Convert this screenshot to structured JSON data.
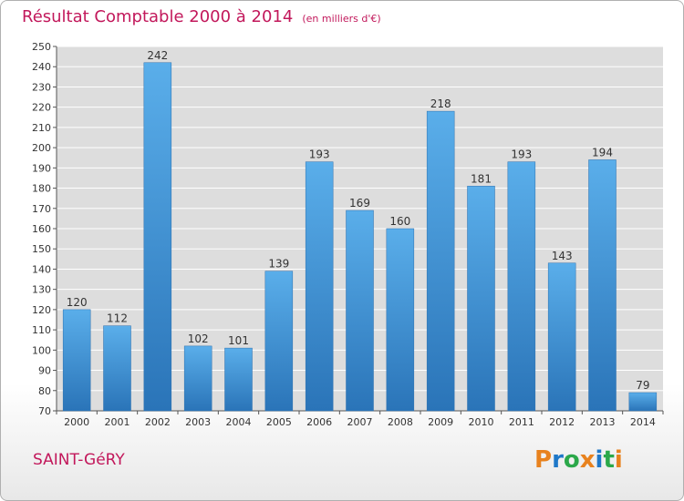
{
  "header": {
    "title": "Résultat Comptable 2000 à 2014",
    "subtitle": "(en milliers d'€)"
  },
  "footer": {
    "commune": "SAINT-GéRY",
    "logo_text": "Proxiti",
    "logo_colors": [
      "#e8821e",
      "#1f78c8",
      "#2ba84a",
      "#e8821e",
      "#1f78c8",
      "#2ba84a",
      "#e8821e"
    ]
  },
  "colors": {
    "bar": "#3d8fd4",
    "grid_bg": "#dddddd",
    "title": "#c2185b"
  },
  "chart_data": {
    "type": "bar",
    "categories": [
      "2000",
      "2001",
      "2002",
      "2003",
      "2004",
      "2005",
      "2006",
      "2007",
      "2008",
      "2009",
      "2010",
      "2011",
      "2012",
      "2013",
      "2014"
    ],
    "values": [
      120,
      112,
      242,
      102,
      101,
      139,
      193,
      169,
      160,
      218,
      181,
      193,
      143,
      194,
      79
    ],
    "ylim": [
      70,
      250
    ],
    "yticks": [
      70,
      80,
      90,
      100,
      110,
      120,
      130,
      140,
      150,
      160,
      170,
      180,
      190,
      200,
      210,
      220,
      230,
      240,
      250
    ],
    "grid": true,
    "data_labels": true
  }
}
